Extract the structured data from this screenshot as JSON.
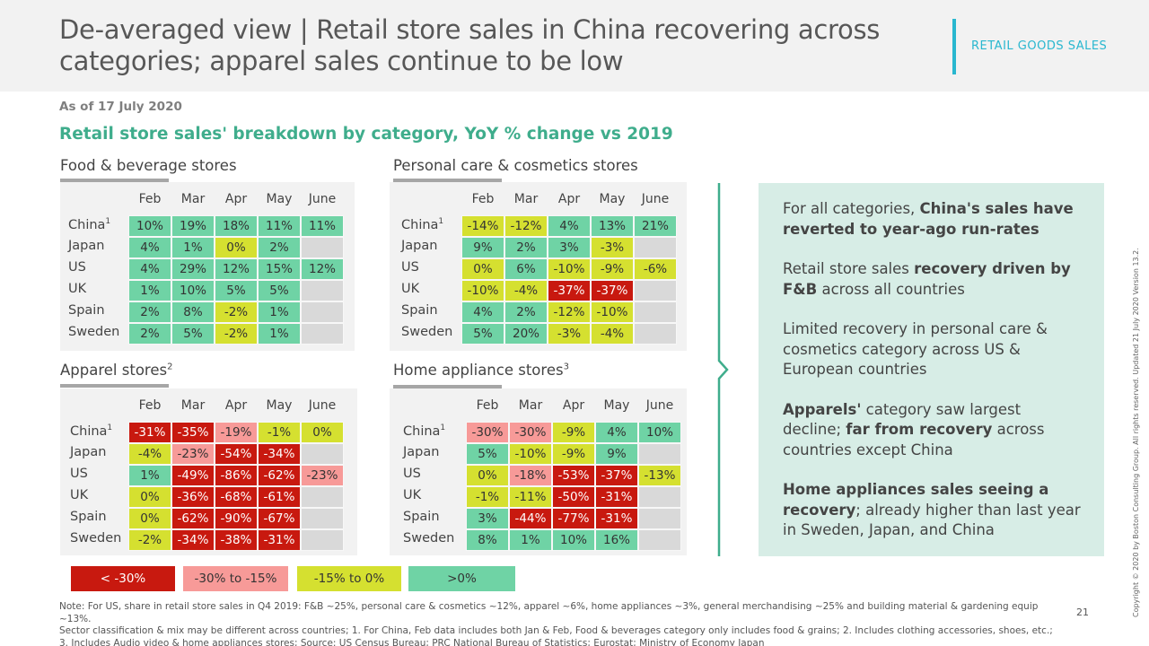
{
  "header": {
    "title_line1": "De-averaged view | Retail store sales in China recovering across",
    "title_line2": "categories; apparel sales continue to be low",
    "tag": "RETAIL GOODS SALES"
  },
  "as_of": "As of 17 July 2020",
  "subtitle": "Retail store sales' breakdown by category, YoY % change vs 2019",
  "months": [
    "Feb",
    "Mar",
    "Apr",
    "May",
    "June"
  ],
  "colors": {
    "lt_neg30": "#c8190f",
    "neg30_neg15": "#f79a98",
    "neg15_0": "#d5e030",
    "gt0": "#6fd3a5",
    "empty": "#d9d9d9"
  },
  "chart_data": [
    {
      "type": "table",
      "title": "Food & beverage stores",
      "columns": [
        "Feb",
        "Mar",
        "Apr",
        "May",
        "June"
      ],
      "rows": [
        {
          "country": "China",
          "sup": "1",
          "values": [
            "10%",
            "19%",
            "18%",
            "11%",
            "11%"
          ],
          "classes": [
            "g",
            "g",
            "g",
            "g",
            "g"
          ]
        },
        {
          "country": "Japan",
          "sup": "",
          "values": [
            "4%",
            "1%",
            "0%",
            "2%",
            ""
          ],
          "classes": [
            "g",
            "g",
            "y",
            "g",
            "e"
          ]
        },
        {
          "country": "US",
          "sup": "",
          "values": [
            "4%",
            "29%",
            "12%",
            "15%",
            "12%"
          ],
          "classes": [
            "g",
            "g",
            "g",
            "g",
            "g"
          ]
        },
        {
          "country": "UK",
          "sup": "",
          "values": [
            "1%",
            "10%",
            "5%",
            "5%",
            ""
          ],
          "classes": [
            "g",
            "g",
            "g",
            "g",
            "e"
          ]
        },
        {
          "country": "Spain",
          "sup": "",
          "values": [
            "2%",
            "8%",
            "-2%",
            "1%",
            ""
          ],
          "classes": [
            "g",
            "g",
            "y",
            "g",
            "e"
          ]
        },
        {
          "country": "Sweden",
          "sup": "",
          "values": [
            "2%",
            "5%",
            "-2%",
            "1%",
            ""
          ],
          "classes": [
            "g",
            "g",
            "y",
            "g",
            "e"
          ]
        }
      ]
    },
    {
      "type": "table",
      "title": "Personal care & cosmetics stores",
      "columns": [
        "Feb",
        "Mar",
        "Apr",
        "May",
        "June"
      ],
      "rows": [
        {
          "country": "China",
          "sup": "1",
          "values": [
            "-14%",
            "-12%",
            "4%",
            "13%",
            "21%"
          ],
          "classes": [
            "y",
            "y",
            "g",
            "g",
            "g"
          ]
        },
        {
          "country": "Japan",
          "sup": "",
          "values": [
            "9%",
            "2%",
            "3%",
            "-3%",
            ""
          ],
          "classes": [
            "g",
            "g",
            "g",
            "y",
            "e"
          ]
        },
        {
          "country": "US",
          "sup": "",
          "values": [
            "0%",
            "6%",
            "-10%",
            "-9%",
            "-6%"
          ],
          "classes": [
            "y",
            "g",
            "y",
            "y",
            "y"
          ]
        },
        {
          "country": "UK",
          "sup": "",
          "values": [
            "-10%",
            "-4%",
            "-37%",
            "-37%",
            ""
          ],
          "classes": [
            "y",
            "y",
            "r",
            "r",
            "e"
          ]
        },
        {
          "country": "Spain",
          "sup": "",
          "values": [
            "4%",
            "2%",
            "-12%",
            "-10%",
            ""
          ],
          "classes": [
            "g",
            "g",
            "y",
            "y",
            "e"
          ]
        },
        {
          "country": "Sweden",
          "sup": "",
          "values": [
            "5%",
            "20%",
            "-3%",
            "-4%",
            ""
          ],
          "classes": [
            "g",
            "g",
            "y",
            "y",
            "e"
          ]
        }
      ]
    },
    {
      "type": "table",
      "title": "Apparel stores",
      "title_sup": "2",
      "columns": [
        "Feb",
        "Mar",
        "Apr",
        "May",
        "June"
      ],
      "rows": [
        {
          "country": "China",
          "sup": "1",
          "values": [
            "-31%",
            "-35%",
            "-19%",
            "-1%",
            "0%"
          ],
          "classes": [
            "r",
            "r",
            "p",
            "y",
            "y"
          ]
        },
        {
          "country": "Japan",
          "sup": "",
          "values": [
            "-4%",
            "-23%",
            "-54%",
            "-34%",
            ""
          ],
          "classes": [
            "y",
            "p",
            "r",
            "r",
            "e"
          ]
        },
        {
          "country": "US",
          "sup": "",
          "values": [
            "1%",
            "-49%",
            "-86%",
            "-62%",
            "-23%"
          ],
          "classes": [
            "g",
            "r",
            "r",
            "r",
            "p"
          ]
        },
        {
          "country": "UK",
          "sup": "",
          "values": [
            "0%",
            "-36%",
            "-68%",
            "-61%",
            ""
          ],
          "classes": [
            "y",
            "r",
            "r",
            "r",
            "e"
          ]
        },
        {
          "country": "Spain",
          "sup": "",
          "values": [
            "0%",
            "-62%",
            "-90%",
            "-67%",
            ""
          ],
          "classes": [
            "y",
            "r",
            "r",
            "r",
            "e"
          ]
        },
        {
          "country": "Sweden",
          "sup": "",
          "values": [
            "-2%",
            "-34%",
            "-38%",
            "-31%",
            ""
          ],
          "classes": [
            "y",
            "r",
            "r",
            "r",
            "e"
          ]
        }
      ]
    },
    {
      "type": "table",
      "title": "Home appliance stores",
      "title_sup": "3",
      "columns": [
        "Feb",
        "Mar",
        "Apr",
        "May",
        "June"
      ],
      "rows": [
        {
          "country": "China",
          "sup": "1",
          "values": [
            "-30%",
            "-30%",
            "-9%",
            "4%",
            "10%"
          ],
          "classes": [
            "p",
            "p",
            "y",
            "g",
            "g"
          ]
        },
        {
          "country": "Japan",
          "sup": "",
          "values": [
            "5%",
            "-10%",
            "-9%",
            "9%",
            ""
          ],
          "classes": [
            "g",
            "y",
            "y",
            "g",
            "e"
          ]
        },
        {
          "country": "US",
          "sup": "",
          "values": [
            "0%",
            "-18%",
            "-53%",
            "-37%",
            "-13%"
          ],
          "classes": [
            "y",
            "p",
            "r",
            "r",
            "y"
          ]
        },
        {
          "country": "UK",
          "sup": "",
          "values": [
            "-1%",
            "-11%",
            "-50%",
            "-31%",
            ""
          ],
          "classes": [
            "y",
            "y",
            "r",
            "r",
            "e"
          ]
        },
        {
          "country": "Spain",
          "sup": "",
          "values": [
            "3%",
            "-44%",
            "-77%",
            "-31%",
            ""
          ],
          "classes": [
            "g",
            "r",
            "r",
            "r",
            "e"
          ]
        },
        {
          "country": "Sweden",
          "sup": "",
          "values": [
            "8%",
            "1%",
            "10%",
            "16%",
            ""
          ],
          "classes": [
            "g",
            "g",
            "g",
            "g",
            "e"
          ]
        }
      ]
    }
  ],
  "summary": [
    [
      {
        "t": "For all categories, ",
        "b": false
      },
      {
        "t": "China's sales have reverted to year-ago run-rates",
        "b": true
      }
    ],
    [
      {
        "t": "Retail store sales ",
        "b": false
      },
      {
        "t": "recovery driven by F&B",
        "b": true
      },
      {
        "t": " across all countries",
        "b": false
      }
    ],
    [
      {
        "t": "Limited recovery in personal care & cosmetics category across US & European countries",
        "b": false
      }
    ],
    [
      {
        "t": "Apparels'",
        "b": true
      },
      {
        "t": " category saw largest decline; ",
        "b": false
      },
      {
        "t": "far from recovery",
        "b": true
      },
      {
        "t": " across countries except China",
        "b": false
      }
    ],
    [
      {
        "t": "Home appliances sales seeing a recovery",
        "b": true
      },
      {
        "t": "; already higher than last year in Sweden, Japan, and China",
        "b": false
      }
    ]
  ],
  "legend": [
    {
      "label": "< -30%",
      "cls": "r"
    },
    {
      "label": "-30% to -15%",
      "cls": "p"
    },
    {
      "label": "-15% to 0%",
      "cls": "y"
    },
    {
      "label": ">0%",
      "cls": "g"
    }
  ],
  "note": {
    "line1": "Note: For US, share in retail store sales in Q4 2019: F&B ~25%, personal care & cosmetics ~12%, apparel ~6%, home appliances ~3%, general merchandising ~25% and building material & gardening equip ~13%.",
    "line2": "Sector classification & mix may be different across countries;  1. For China, Feb data includes both Jan & Feb, Food & beverages category only includes food & grains;  2. Includes clothing accessories, shoes, etc.;",
    "line3": "3. Includes Audio video & home appliances stores;  Source: US Census Bureau; PRC National Bureau of Statistics; Eurostat; Ministry of Economy Japan"
  },
  "page_number": "21",
  "copyright": "Copyright © 2020 by Boston Consulting Group. All rights reserved. Updated 21 July 2020 Version 13.2."
}
